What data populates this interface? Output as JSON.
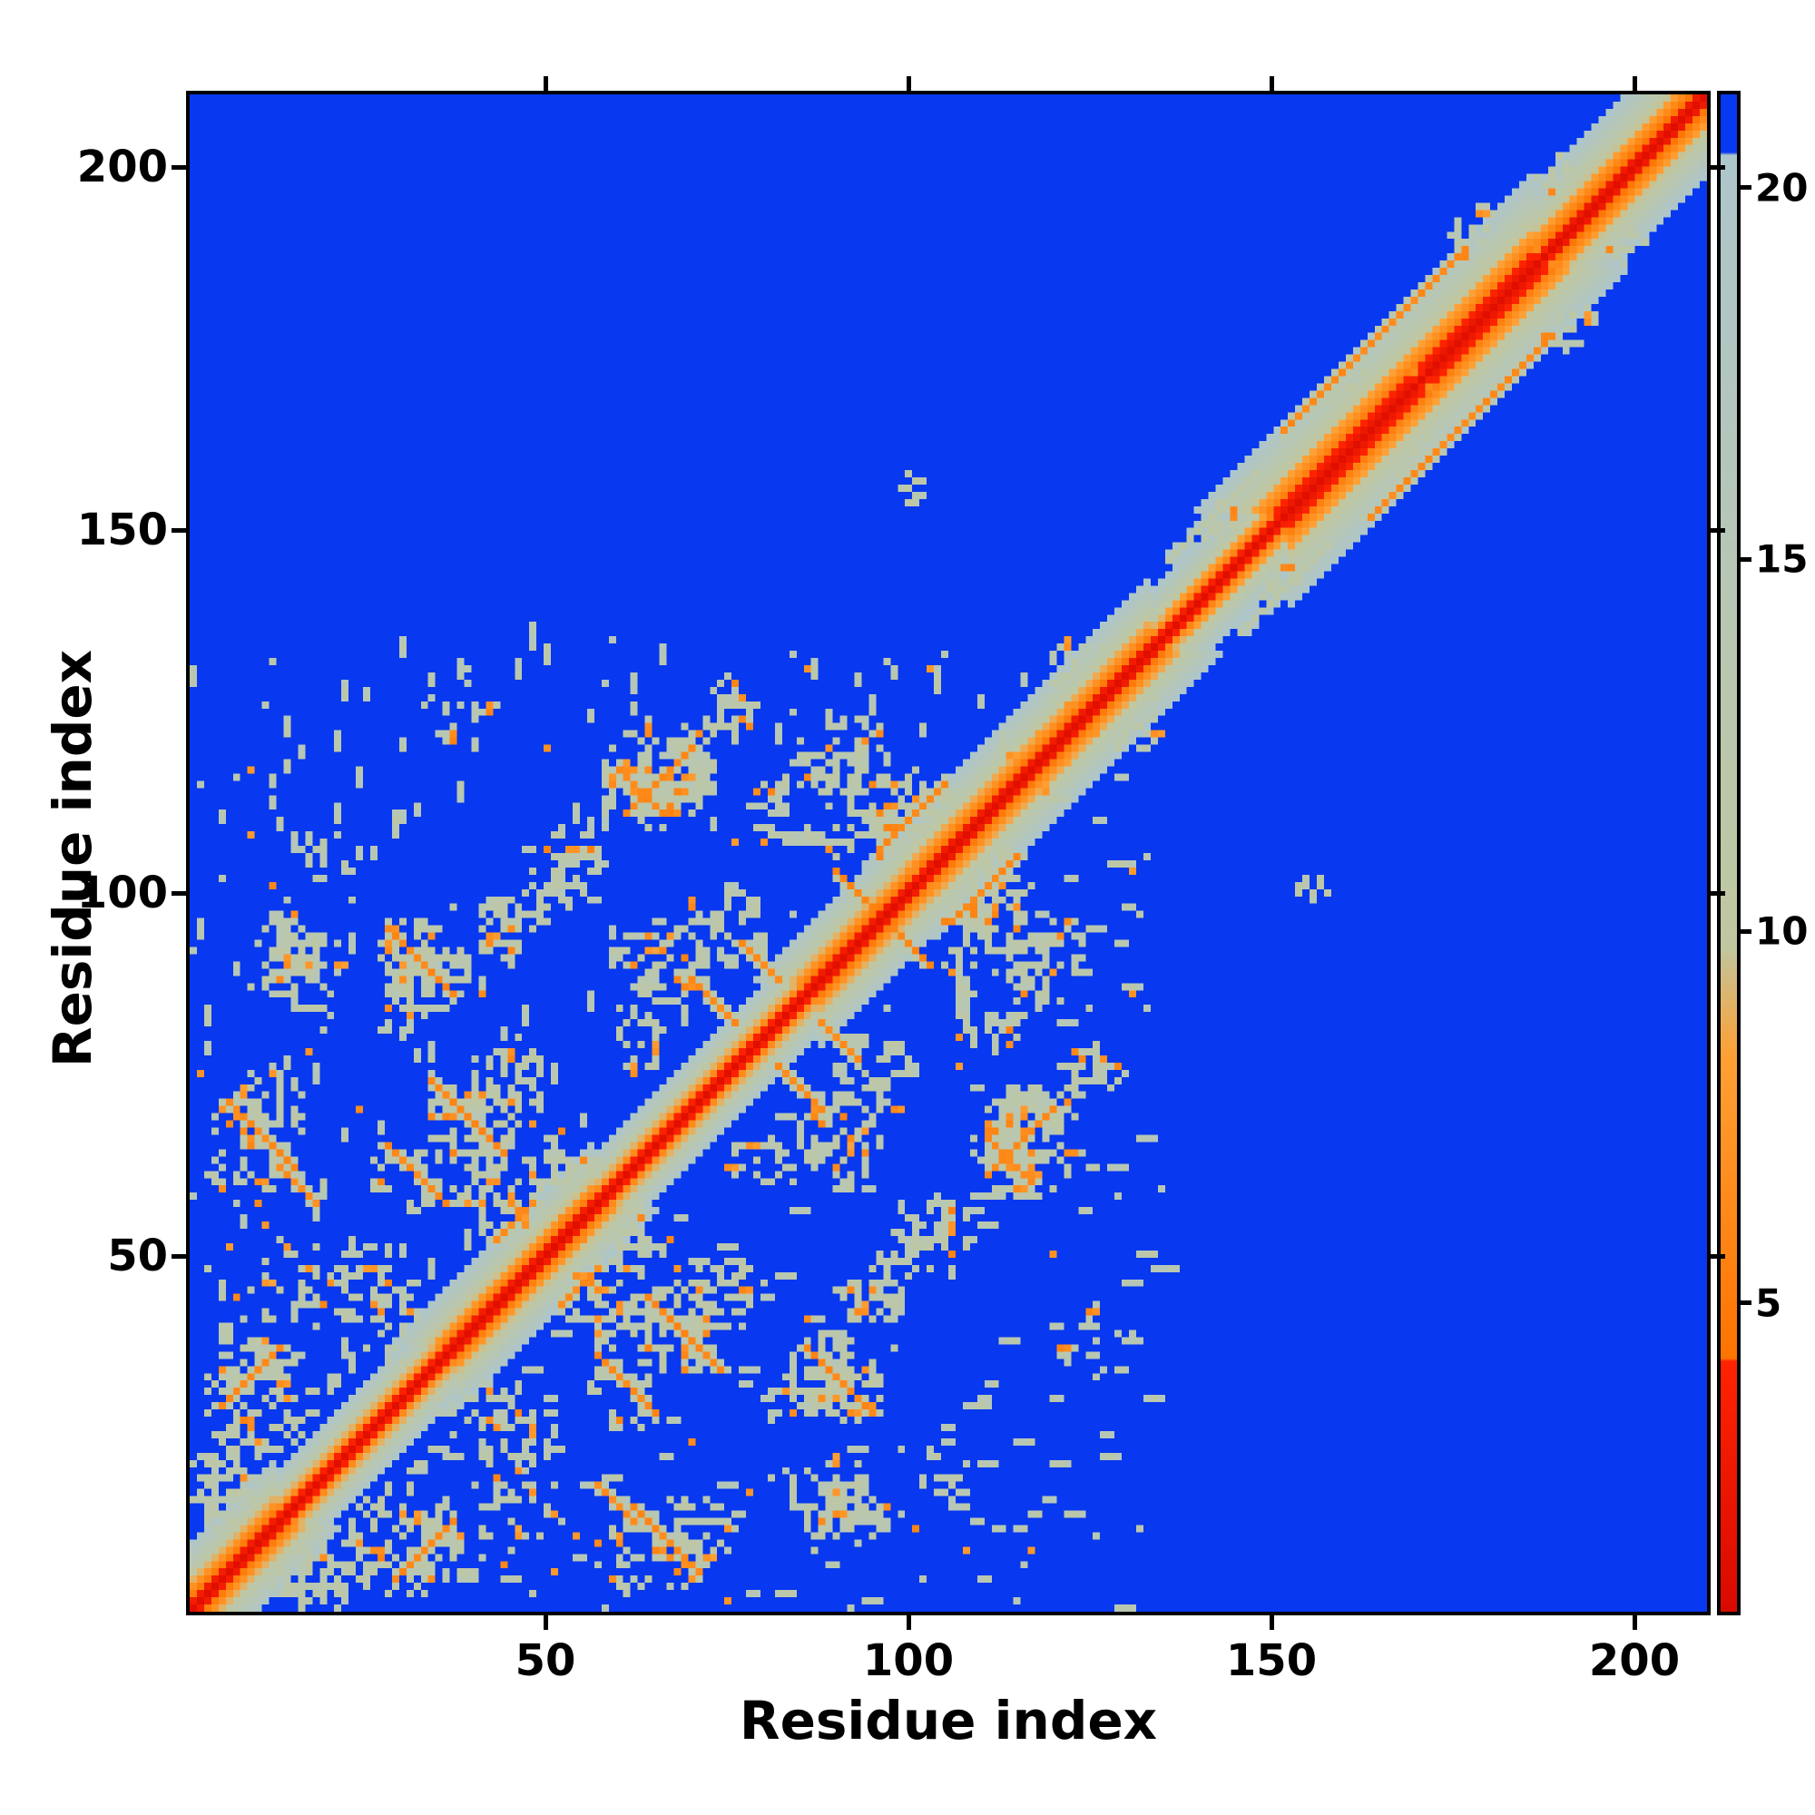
{
  "figure": {
    "background": "#ffffff"
  },
  "chart_data": {
    "type": "heatmap",
    "title": "",
    "xlabel": "Residue index",
    "ylabel": "Residue index",
    "x_range": [
      1,
      210
    ],
    "y_range": [
      1,
      210
    ],
    "x_ticks": [
      50,
      100,
      150,
      200
    ],
    "y_ticks": [
      50,
      100,
      150,
      200
    ],
    "grid": false,
    "colorbar": {
      "ticks": [
        5,
        10,
        15,
        20
      ],
      "top_value": 21.3,
      "bottom_value": 0.8,
      "position": "right"
    },
    "colormap": {
      "red_dark": "#cf0400",
      "red": "#ff2400",
      "orange_lo": "#fe7300",
      "orange_hi": "#ffa033",
      "pale_lo": "#c0c7a0",
      "pale_hi": "#adc6cc",
      "blue": "#0838ef",
      "t_red": 4.2,
      "t_orange": 8.3,
      "t_fade": 9.8,
      "t_blue": 20.5
    },
    "matrix": {
      "n": 210,
      "background_value": 21.3,
      "seed": 20240613,
      "diagonal": {
        "self_value": 1.5,
        "v_at_d1": 3.8,
        "slope_per_residue": 2.6,
        "max_band": 20
      },
      "helix_regions": [
        [
          1,
          12,
          0.75
        ],
        [
          38,
          56,
          0.8
        ],
        [
          88,
          100,
          0.75
        ],
        [
          104,
          133,
          0.72
        ],
        [
          139,
          151,
          0.9
        ],
        [
          153,
          169,
          0.55
        ],
        [
          173,
          186,
          0.55
        ],
        [
          190,
          210,
          0.65
        ]
      ],
      "clusters": [
        [
          5,
          18,
          5,
          7,
          0.4,
          13
        ],
        [
          10,
          30,
          8,
          8,
          0.35,
          13
        ],
        [
          8,
          65,
          6,
          9,
          0.3,
          13
        ],
        [
          15,
          90,
          7,
          7,
          0.3,
          13
        ],
        [
          33,
          90,
          7,
          7,
          0.5,
          12
        ],
        [
          40,
          68,
          7,
          7,
          0.5,
          12
        ],
        [
          25,
          46,
          6,
          6,
          0.3,
          13
        ],
        [
          36,
          30,
          6,
          6,
          0.3,
          13.5
        ],
        [
          52,
          60,
          7,
          7,
          0.35,
          13
        ],
        [
          65,
          90,
          7,
          6,
          0.35,
          13
        ],
        [
          52,
          103,
          6,
          6,
          0.35,
          13
        ],
        [
          67,
          117,
          7,
          7,
          0.4,
          13
        ],
        [
          88,
          112,
          10,
          8,
          0.42,
          13,
          0.18
        ],
        [
          100,
          112,
          6,
          6,
          0.45,
          12.5
        ],
        [
          115,
          63,
          8,
          6,
          0.35,
          13
        ],
        [
          118,
          92,
          7,
          6,
          0.35,
          13
        ],
        [
          126,
          38,
          6,
          5,
          0.25,
          14
        ],
        [
          92,
          14,
          7,
          5,
          0.32,
          13
        ],
        [
          70,
          12,
          7,
          5,
          0.35,
          13
        ],
        [
          36,
          9,
          6,
          4,
          0.35,
          13
        ],
        [
          57,
          42,
          6,
          6,
          0.35,
          13
        ],
        [
          75,
          45,
          6,
          6,
          0.3,
          13
        ],
        [
          95,
          75,
          6,
          6,
          0.35,
          13
        ],
        [
          80,
          62,
          5,
          5,
          0.3,
          13
        ],
        [
          108,
          100,
          5,
          5,
          0.4,
          12.5
        ],
        [
          130,
          124,
          5,
          5,
          0.4,
          13
        ],
        [
          100,
          156,
          2,
          2,
          0.85,
          12
        ],
        [
          143,
          151,
          4,
          4,
          0.4,
          13
        ],
        [
          160,
          169,
          5,
          4,
          0.35,
          13
        ],
        [
          171,
          179,
          4,
          4,
          0.35,
          13
        ],
        [
          179,
          191,
          4,
          4,
          0.35,
          13
        ],
        [
          190,
          199,
          3,
          3,
          0.35,
          13
        ],
        [
          118,
          118,
          6,
          6,
          0.3,
          13
        ],
        [
          30,
          60,
          5,
          5,
          0.25,
          13
        ],
        [
          14,
          45,
          5,
          5,
          0.25,
          13
        ],
        [
          45,
          95,
          5,
          5,
          0.3,
          13
        ],
        [
          85,
          30,
          6,
          5,
          0.25,
          13
        ],
        [
          105,
          20,
          5,
          4,
          0.22,
          13
        ],
        [
          125,
          75,
          5,
          5,
          0.25,
          13
        ],
        [
          96,
          45,
          5,
          5,
          0.22,
          13
        ]
      ],
      "streaks": [
        [
          28,
          95,
          10,
          -1,
          6
        ],
        [
          34,
          74,
          11,
          -1,
          6
        ],
        [
          62,
          15,
          10,
          -1,
          6.2
        ],
        [
          29,
          5,
          9,
          1,
          6.2
        ],
        [
          57,
          36,
          9,
          -1,
          6.2
        ],
        [
          90,
          103,
          9,
          -1,
          6
        ],
        [
          96,
          106,
          10,
          1,
          6
        ],
        [
          62,
          112,
          9,
          1,
          6.2
        ],
        [
          111,
          66,
          7,
          -1,
          6.3
        ],
        [
          70,
          88,
          7,
          -1,
          6.3
        ],
        [
          152,
          164,
          26,
          1,
          6.3
        ],
        [
          136,
          146,
          13,
          1,
          11.5
        ],
        [
          13,
          62,
          6,
          -1,
          6.5
        ],
        [
          43,
          52,
          6,
          1,
          6.4
        ],
        [
          88,
          82,
          6,
          -1,
          6.4
        ]
      ],
      "speckle": {
        "region_max": 135,
        "min_offset": 8,
        "p_pale": 0.018,
        "p_orange": 0.0035
      }
    }
  },
  "layout_text": {
    "x_axis_label": "Residue index",
    "y_axis_label": "Residue index"
  }
}
